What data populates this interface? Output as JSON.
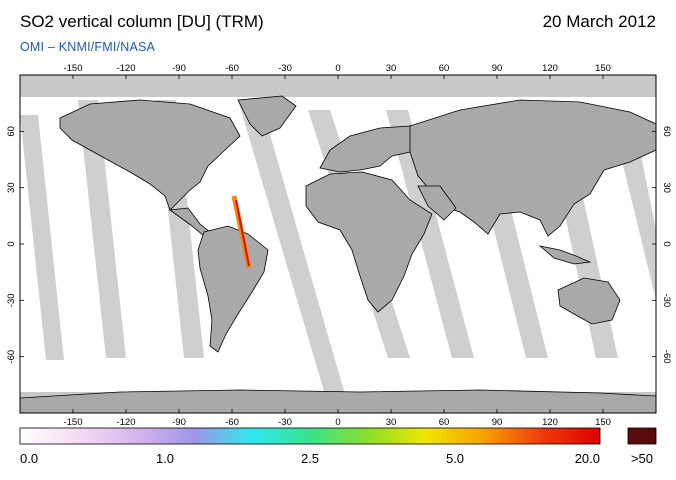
{
  "header": {
    "title": "SO2 vertical column [DU] (TRM)",
    "date": "20 March 2012",
    "subtitle": "OMI  –  KNMI/FMI/NASA"
  },
  "map": {
    "lon_ticks": [
      "-150",
      "-120",
      "-90",
      "-60",
      "-30",
      "0",
      "30",
      "60",
      "90",
      "120",
      "150"
    ],
    "lat_ticks": [
      "60",
      "30",
      "0",
      "-30",
      "-60"
    ],
    "colors": {
      "land": "#a9a9a9",
      "nodata": "#c8c8c8",
      "background": "#ffffff",
      "coast": "#000000"
    }
  },
  "colorbar": {
    "labels": [
      "0.0",
      "1.0",
      "2.5",
      "5.0",
      "20.0"
    ],
    "overflow_label": ">50",
    "overflow_color": "#5a0a0a",
    "gradient_stops": [
      "#ffffff",
      "#f4dcf4",
      "#d7b5ee",
      "#9f95e8",
      "#2fe8f0",
      "#39e38a",
      "#8cdf2a",
      "#f0e600",
      "#f7a000",
      "#ee3c0a",
      "#dd0000"
    ]
  }
}
